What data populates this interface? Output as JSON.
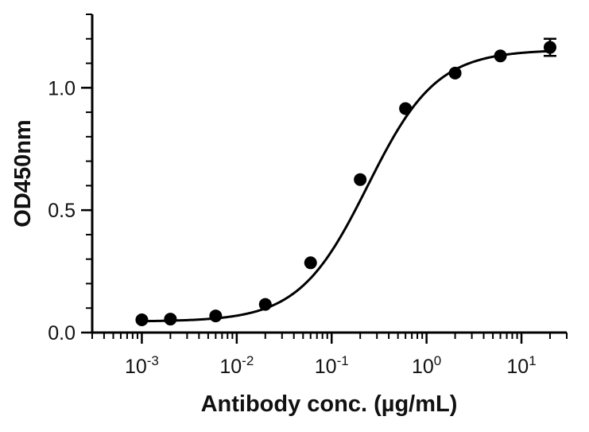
{
  "chart_data": {
    "type": "scatter",
    "title": "",
    "xlabel": "Antibody conc. (µg/mL)",
    "ylabel": "OD450nm",
    "x_scale": "log10",
    "xlim": [
      0.0003,
      30
    ],
    "ylim": [
      0.0,
      1.3
    ],
    "grid": false,
    "legend": "none",
    "x_ticks": [
      {
        "base": "10",
        "exp": "-3",
        "value": 0.001
      },
      {
        "base": "10",
        "exp": "-2",
        "value": 0.01
      },
      {
        "base": "10",
        "exp": "-1",
        "value": 0.1
      },
      {
        "base": "10",
        "exp": "0",
        "value": 1
      },
      {
        "base": "10",
        "exp": "1",
        "value": 10
      }
    ],
    "y_ticks": [
      {
        "label": "0.0",
        "value": 0.0
      },
      {
        "label": "0.5",
        "value": 0.5
      },
      {
        "label": "1.0",
        "value": 1.0
      }
    ],
    "points": [
      {
        "x": 0.001,
        "y": 0.052
      },
      {
        "x": 0.002,
        "y": 0.055
      },
      {
        "x": 0.006,
        "y": 0.068
      },
      {
        "x": 0.02,
        "y": 0.115
      },
      {
        "x": 0.06,
        "y": 0.285
      },
      {
        "x": 0.2,
        "y": 0.625
      },
      {
        "x": 0.6,
        "y": 0.915
      },
      {
        "x": 2,
        "y": 1.06
      },
      {
        "x": 6,
        "y": 1.13
      },
      {
        "x": 20,
        "y": 1.165,
        "err": 0.035
      }
    ],
    "fit": {
      "model": "4PL",
      "bottom": 0.045,
      "top": 1.155,
      "ec50": 0.24,
      "hill": 1.2
    },
    "colors": {
      "marker": "#000000",
      "line": "#000000",
      "axis": "#000000"
    }
  }
}
